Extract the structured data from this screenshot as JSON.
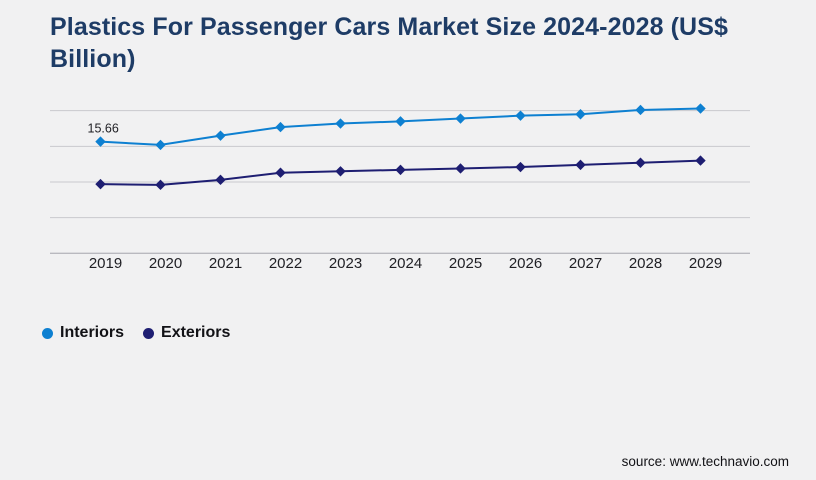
{
  "title": "Plastics For Passenger Cars Market Size 2024-2028 (US$ Billion)",
  "source": "source: www.technavio.com",
  "colors": {
    "background": "#f1f1f2",
    "title": "#1e3c66",
    "text": "#1f1f24",
    "gridline": "#c9c9cd",
    "axis": "#b9b9bf",
    "interiors": "#0e80d1",
    "exteriors": "#1e1e72"
  },
  "legend": [
    {
      "label": "Interiors",
      "color": "#0e80d1"
    },
    {
      "label": "Exteriors",
      "color": "#1e1e72"
    }
  ],
  "chart_data": {
    "type": "line",
    "x": [
      "2019",
      "2020",
      "2021",
      "2022",
      "2023",
      "2024",
      "2025",
      "2026",
      "2027",
      "2028",
      "2029"
    ],
    "series": [
      {
        "name": "Interiors",
        "color": "#0e80d1",
        "values": [
          15.66,
          15.2,
          16.5,
          17.7,
          18.2,
          18.5,
          18.9,
          19.3,
          19.5,
          20.1,
          20.3
        ]
      },
      {
        "name": "Exteriors",
        "color": "#1e1e72",
        "values": [
          9.7,
          9.6,
          10.3,
          11.3,
          11.5,
          11.7,
          11.9,
          12.1,
          12.4,
          12.7,
          13.0
        ]
      }
    ],
    "point_label": {
      "series": "Interiors",
      "x": "2019",
      "text": "15.66"
    },
    "title": "Plastics For Passenger Cars Market Size 2024-2028 (US$ Billion)",
    "xlabel": "",
    "ylabel": "",
    "ylim": [
      0,
      22.2
    ],
    "gridline_step": 5,
    "grid": true,
    "marker": "diamond",
    "legend_position": "bottom-left"
  }
}
